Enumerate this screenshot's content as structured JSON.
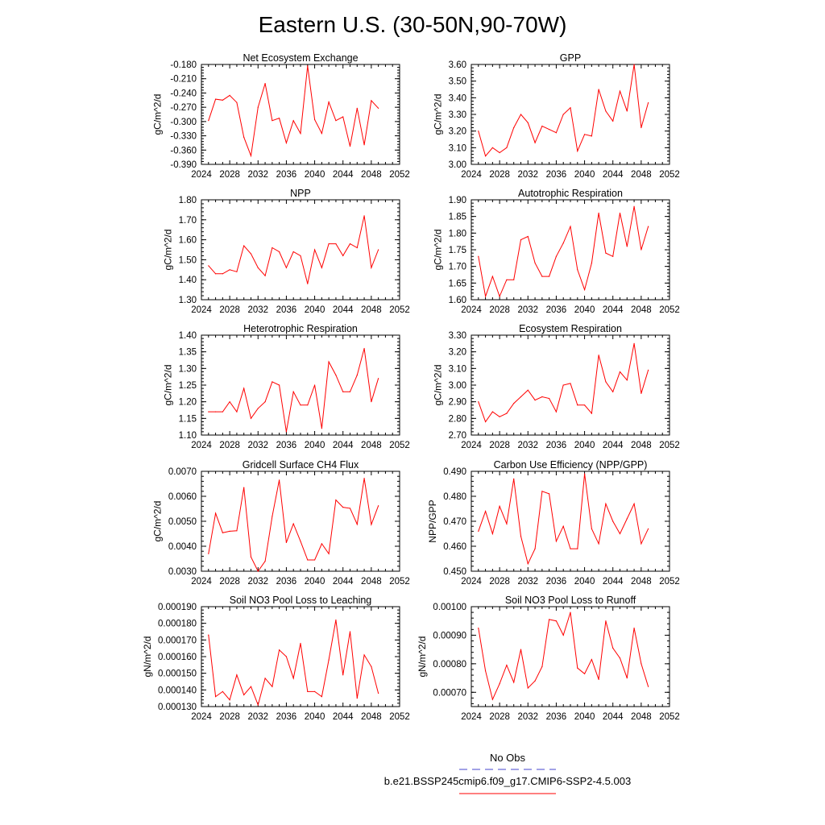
{
  "title": "Eastern U.S. (30-50N,90-70W)",
  "colors": {
    "model_line": "#ff0000",
    "obs_line": "#4444cc",
    "axis": "#000000"
  },
  "legend": {
    "obs_label": "No Obs",
    "model_label": "b.e21.BSSP245cmip6.f09_g17.CMIP6-SSP2-4.5.003"
  },
  "chart_data": [
    {
      "type": "line",
      "title": "Net Ecosystem Exchange",
      "ylabel": "gC/m^2/d",
      "xlim": [
        2024,
        2052
      ],
      "xticks": [
        "2024",
        "2028",
        "2032",
        "2036",
        "2040",
        "2044",
        "2048",
        "2052"
      ],
      "ylim": [
        -0.39,
        -0.18
      ],
      "yticks": [
        "-0.390",
        "-0.360",
        "-0.330",
        "-0.300",
        "-0.270",
        "-0.240",
        "-0.210",
        "-0.180"
      ],
      "x": [
        2025,
        2026,
        2027,
        2028,
        2029,
        2030,
        2031,
        2032,
        2033,
        2034,
        2035,
        2036,
        2037,
        2038,
        2039,
        2040,
        2041,
        2042,
        2043,
        2044,
        2045,
        2046,
        2047,
        2048,
        2049
      ],
      "series": [
        {
          "values": [
            -0.298,
            -0.253,
            -0.255,
            -0.245,
            -0.26,
            -0.333,
            -0.372,
            -0.27,
            -0.22,
            -0.298,
            -0.293,
            -0.345,
            -0.298,
            -0.325,
            -0.183,
            -0.296,
            -0.325,
            -0.259,
            -0.298,
            -0.29,
            -0.352,
            -0.272,
            -0.349,
            -0.256,
            -0.272
          ]
        }
      ]
    },
    {
      "type": "line",
      "title": "GPP",
      "ylabel": "gC/m^2/d",
      "xlim": [
        2024,
        2052
      ],
      "xticks": [
        "2024",
        "2028",
        "2032",
        "2036",
        "2040",
        "2044",
        "2048",
        "2052"
      ],
      "ylim": [
        3.0,
        3.6
      ],
      "yticks": [
        "3.00",
        "3.10",
        "3.20",
        "3.30",
        "3.40",
        "3.50",
        "3.60"
      ],
      "x": [
        2025,
        2026,
        2027,
        2028,
        2029,
        2030,
        2031,
        2032,
        2033,
        2034,
        2035,
        2036,
        2037,
        2038,
        2039,
        2040,
        2041,
        2042,
        2043,
        2044,
        2045,
        2046,
        2047,
        2048,
        2049
      ],
      "series": [
        {
          "values": [
            3.2,
            3.05,
            3.1,
            3.07,
            3.1,
            3.22,
            3.3,
            3.25,
            3.13,
            3.23,
            3.21,
            3.19,
            3.3,
            3.34,
            3.08,
            3.18,
            3.17,
            3.45,
            3.32,
            3.26,
            3.44,
            3.32,
            3.6,
            3.22,
            3.37
          ]
        }
      ]
    },
    {
      "type": "line",
      "title": "NPP",
      "ylabel": "gC/m^2/d",
      "xlim": [
        2024,
        2052
      ],
      "xticks": [
        "2024",
        "2028",
        "2032",
        "2036",
        "2040",
        "2044",
        "2048",
        "2052"
      ],
      "ylim": [
        1.3,
        1.8
      ],
      "yticks": [
        "1.30",
        "1.40",
        "1.50",
        "1.60",
        "1.70",
        "1.80"
      ],
      "x": [
        2025,
        2026,
        2027,
        2028,
        2029,
        2030,
        2031,
        2032,
        2033,
        2034,
        2035,
        2036,
        2037,
        2038,
        2039,
        2040,
        2041,
        2042,
        2043,
        2044,
        2045,
        2046,
        2047,
        2048,
        2049
      ],
      "series": [
        {
          "values": [
            1.47,
            1.43,
            1.43,
            1.45,
            1.44,
            1.57,
            1.53,
            1.46,
            1.42,
            1.56,
            1.54,
            1.46,
            1.54,
            1.52,
            1.38,
            1.55,
            1.46,
            1.58,
            1.58,
            1.52,
            1.58,
            1.56,
            1.72,
            1.46,
            1.55
          ]
        }
      ]
    },
    {
      "type": "line",
      "title": "Autotrophic Respiration",
      "ylabel": "gC/m^2/d",
      "xlim": [
        2024,
        2052
      ],
      "xticks": [
        "2024",
        "2028",
        "2032",
        "2036",
        "2040",
        "2044",
        "2048",
        "2052"
      ],
      "ylim": [
        1.6,
        1.9
      ],
      "yticks": [
        "1.60",
        "1.65",
        "1.70",
        "1.75",
        "1.80",
        "1.85",
        "1.90"
      ],
      "x": [
        2025,
        2026,
        2027,
        2028,
        2029,
        2030,
        2031,
        2032,
        2033,
        2034,
        2035,
        2036,
        2037,
        2038,
        2039,
        2040,
        2041,
        2042,
        2043,
        2044,
        2045,
        2046,
        2047,
        2048,
        2049
      ],
      "series": [
        {
          "values": [
            1.73,
            1.61,
            1.67,
            1.61,
            1.66,
            1.66,
            1.78,
            1.79,
            1.71,
            1.67,
            1.67,
            1.73,
            1.77,
            1.82,
            1.69,
            1.63,
            1.71,
            1.86,
            1.74,
            1.73,
            1.86,
            1.76,
            1.88,
            1.75,
            1.82
          ]
        }
      ]
    },
    {
      "type": "line",
      "title": "Heterotrophic Respiration",
      "ylabel": "gC/m^2/d",
      "xlim": [
        2024,
        2052
      ],
      "xticks": [
        "2024",
        "2028",
        "2032",
        "2036",
        "2040",
        "2044",
        "2048",
        "2052"
      ],
      "ylim": [
        1.1,
        1.4
      ],
      "yticks": [
        "1.10",
        "1.15",
        "1.20",
        "1.25",
        "1.30",
        "1.35",
        "1.40"
      ],
      "x": [
        2025,
        2026,
        2027,
        2028,
        2029,
        2030,
        2031,
        2032,
        2033,
        2034,
        2035,
        2036,
        2037,
        2038,
        2039,
        2040,
        2041,
        2042,
        2043,
        2044,
        2045,
        2046,
        2047,
        2048,
        2049
      ],
      "series": [
        {
          "values": [
            1.17,
            1.17,
            1.17,
            1.2,
            1.17,
            1.24,
            1.15,
            1.18,
            1.2,
            1.26,
            1.25,
            1.11,
            1.23,
            1.19,
            1.19,
            1.25,
            1.12,
            1.32,
            1.28,
            1.23,
            1.23,
            1.28,
            1.36,
            1.2,
            1.27
          ]
        }
      ]
    },
    {
      "type": "line",
      "title": "Ecosystem Respiration",
      "ylabel": "gC/m^2/d",
      "xlim": [
        2024,
        2052
      ],
      "xticks": [
        "2024",
        "2028",
        "2032",
        "2036",
        "2040",
        "2044",
        "2048",
        "2052"
      ],
      "ylim": [
        2.7,
        3.3
      ],
      "yticks": [
        "2.70",
        "2.80",
        "2.90",
        "3.00",
        "3.10",
        "3.20",
        "3.30"
      ],
      "x": [
        2025,
        2026,
        2027,
        2028,
        2029,
        2030,
        2031,
        2032,
        2033,
        2034,
        2035,
        2036,
        2037,
        2038,
        2039,
        2040,
        2041,
        2042,
        2043,
        2044,
        2045,
        2046,
        2047,
        2048,
        2049
      ],
      "series": [
        {
          "values": [
            2.9,
            2.78,
            2.84,
            2.81,
            2.83,
            2.89,
            2.93,
            2.97,
            2.91,
            2.93,
            2.92,
            2.84,
            3.0,
            3.01,
            2.88,
            2.88,
            2.83,
            3.18,
            3.02,
            2.96,
            3.08,
            3.03,
            3.25,
            2.95,
            3.09
          ]
        }
      ]
    },
    {
      "type": "line",
      "title": "Gridcell Surface CH4 Flux",
      "ylabel": "gC/m^2/d",
      "xlim": [
        2024,
        2052
      ],
      "xticks": [
        "2024",
        "2028",
        "2032",
        "2036",
        "2040",
        "2044",
        "2048",
        "2052"
      ],
      "ylim": [
        0.003,
        0.007
      ],
      "yticks": [
        "0.0030",
        "0.0040",
        "0.0050",
        "0.0060",
        "0.0070"
      ],
      "x": [
        2025,
        2026,
        2027,
        2028,
        2029,
        2030,
        2031,
        2032,
        2033,
        2034,
        2035,
        2036,
        2037,
        2038,
        2039,
        2040,
        2041,
        2042,
        2043,
        2044,
        2045,
        2046,
        2047,
        2048,
        2049
      ],
      "series": [
        {
          "values": [
            0.0037,
            0.00532,
            0.00454,
            0.0046,
            0.00462,
            0.00635,
            0.00357,
            0.003,
            0.0034,
            0.0052,
            0.00665,
            0.00415,
            0.0049,
            0.0042,
            0.00345,
            0.00345,
            0.0041,
            0.0037,
            0.00585,
            0.00556,
            0.00552,
            0.00488,
            0.00672,
            0.00487,
            0.00562
          ]
        }
      ]
    },
    {
      "type": "line",
      "title": "Carbon Use Efficiency (NPP/GPP)",
      "ylabel": "NPP/GPP",
      "xlim": [
        2024,
        2052
      ],
      "xticks": [
        "2024",
        "2028",
        "2032",
        "2036",
        "2040",
        "2044",
        "2048",
        "2052"
      ],
      "ylim": [
        0.45,
        0.49
      ],
      "yticks": [
        "0.450",
        "0.460",
        "0.470",
        "0.480",
        "0.490"
      ],
      "x": [
        2025,
        2026,
        2027,
        2028,
        2029,
        2030,
        2031,
        2032,
        2033,
        2034,
        2035,
        2036,
        2037,
        2038,
        2039,
        2040,
        2041,
        2042,
        2043,
        2044,
        2045,
        2046,
        2047,
        2048,
        2049
      ],
      "series": [
        {
          "values": [
            0.466,
            0.474,
            0.465,
            0.476,
            0.469,
            0.487,
            0.464,
            0.453,
            0.459,
            0.482,
            0.481,
            0.462,
            0.468,
            0.459,
            0.459,
            0.489,
            0.467,
            0.461,
            0.477,
            0.47,
            0.465,
            0.471,
            0.477,
            0.461,
            0.467
          ]
        }
      ]
    },
    {
      "type": "line",
      "title": "Soil NO3 Pool Loss to Leaching",
      "ylabel": "gN/m^2/d",
      "xlim": [
        2024,
        2052
      ],
      "xticks": [
        "2024",
        "2028",
        "2032",
        "2036",
        "2040",
        "2044",
        "2048",
        "2052"
      ],
      "ylim": [
        0.00013,
        0.00019
      ],
      "yticks": [
        "0.000130",
        "0.000140",
        "0.000150",
        "0.000160",
        "0.000170",
        "0.000180",
        "0.000190"
      ],
      "x": [
        2025,
        2026,
        2027,
        2028,
        2029,
        2030,
        2031,
        2032,
        2033,
        2034,
        2035,
        2036,
        2037,
        2038,
        2039,
        2040,
        2041,
        2042,
        2043,
        2044,
        2045,
        2046,
        2047,
        2048,
        2049
      ],
      "series": [
        {
          "values": [
            0.000173,
            0.000136,
            0.000139,
            0.000134,
            0.000149,
            0.000137,
            0.000142,
            0.000131,
            0.000147,
            0.000142,
            0.000164,
            0.00016,
            0.000147,
            0.000168,
            0.000139,
            0.000139,
            0.000136,
            0.000158,
            0.000182,
            0.000149,
            0.000175,
            0.000135,
            0.000161,
            0.000154,
            0.000138
          ]
        }
      ]
    },
    {
      "type": "line",
      "title": "Soil NO3 Pool Loss to Runoff",
      "ylabel": "gN/m^2/d",
      "xlim": [
        2024,
        2052
      ],
      "xticks": [
        "2024",
        "2028",
        "2032",
        "2036",
        "2040",
        "2044",
        "2048",
        "2052"
      ],
      "ylim": [
        0.00065,
        0.001
      ],
      "yticks": [
        "0.00070",
        "0.00080",
        "0.00090",
        "0.00100"
      ],
      "ytick_values": [
        0.0007,
        0.0008,
        0.0009,
        0.001
      ],
      "x": [
        2025,
        2026,
        2027,
        2028,
        2029,
        2030,
        2031,
        2032,
        2033,
        2034,
        2035,
        2036,
        2037,
        2038,
        2039,
        2040,
        2041,
        2042,
        2043,
        2044,
        2045,
        2046,
        2047,
        2048,
        2049
      ],
      "series": [
        {
          "values": [
            0.000925,
            0.000775,
            0.000675,
            0.00073,
            0.000795,
            0.000735,
            0.00085,
            0.000715,
            0.00074,
            0.00079,
            0.000955,
            0.00095,
            0.0009,
            0.00098,
            0.000785,
            0.000765,
            0.000815,
            0.000745,
            0.00095,
            0.000855,
            0.00082,
            0.00075,
            0.000925,
            0.0008,
            0.00072
          ]
        }
      ]
    }
  ]
}
